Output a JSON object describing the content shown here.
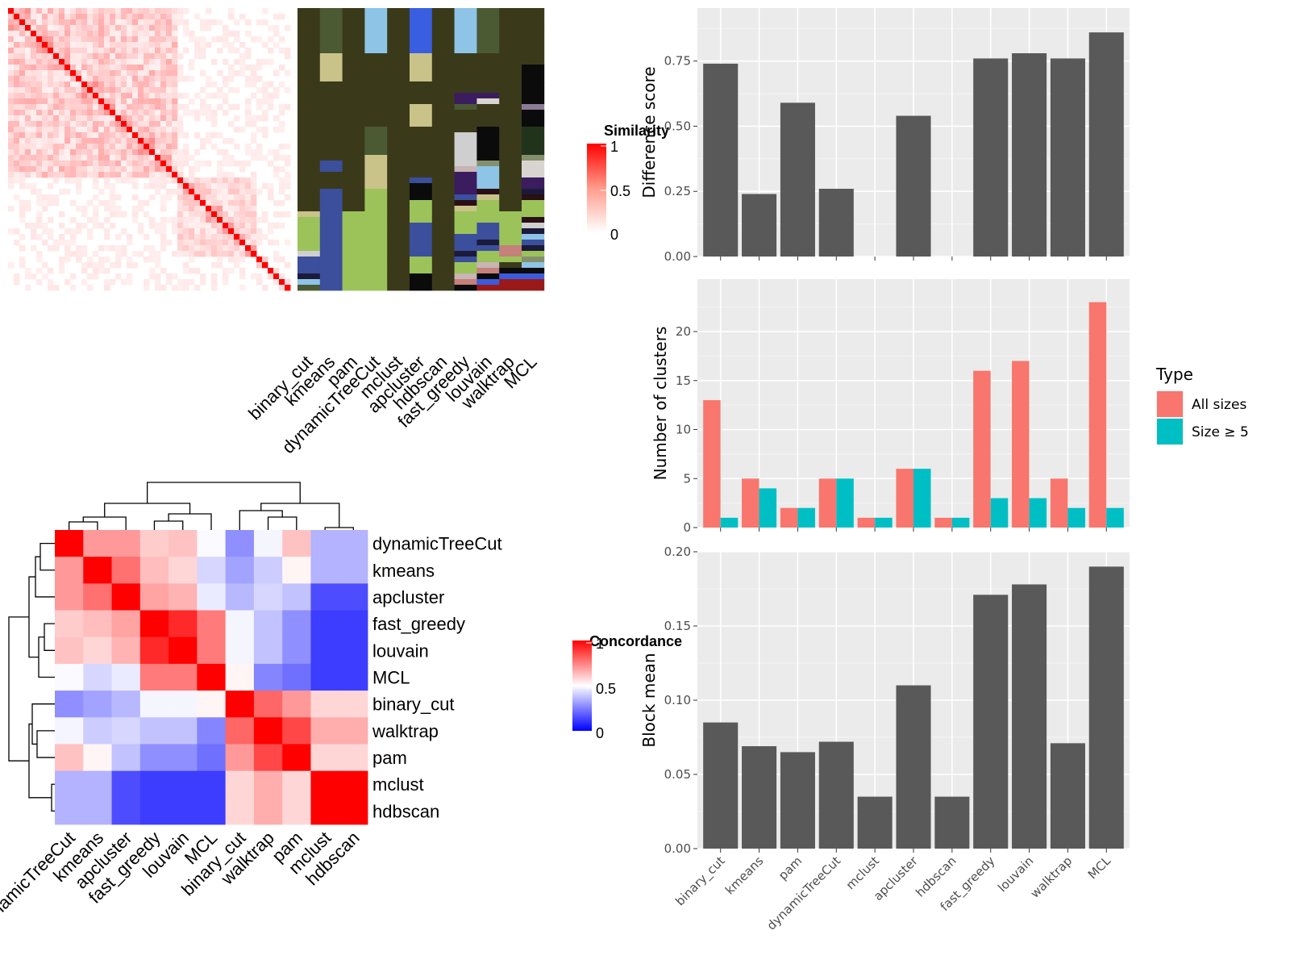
{
  "chart_data": [
    {
      "type": "heatmap",
      "panel": "similarity-matrix-with-cluster-annotations",
      "legend_title": "Similarity",
      "legend_ticks": [
        "0",
        "0.5",
        "1"
      ],
      "methods": [
        "binary_cut",
        "kmeans",
        "pam",
        "dynamicTreeCut",
        "mclust",
        "apcluster",
        "hdbscan",
        "fast_greedy",
        "louvain",
        "walktrap",
        "MCL"
      ],
      "n_terms": 50,
      "color_low": "#ffffff",
      "color_high": "#ff0000"
    },
    {
      "type": "heatmap",
      "panel": "method-concordance",
      "legend_title": "Concordance",
      "legend_ticks": [
        "0",
        "0.5",
        "1"
      ],
      "row_labels": [
        "dynamicTreeCut",
        "kmeans",
        "apcluster",
        "fast_greedy",
        "louvain",
        "MCL",
        "binary_cut",
        "walktrap",
        "pam",
        "mclust",
        "hdbscan"
      ],
      "col_labels": [
        "dynamicTreeCut",
        "kmeans",
        "apcluster",
        "fast_greedy",
        "louvain",
        "MCL",
        "binary_cut",
        "walktrap",
        "pam",
        "mclust",
        "hdbscan"
      ],
      "values": [
        [
          1.0,
          0.7,
          0.7,
          0.6,
          0.62,
          0.49,
          0.28,
          0.48,
          0.62,
          0.35,
          0.35
        ],
        [
          0.7,
          1.0,
          0.78,
          0.63,
          0.58,
          0.42,
          0.32,
          0.4,
          0.52,
          0.35,
          0.35
        ],
        [
          0.7,
          0.78,
          1.0,
          0.68,
          0.65,
          0.46,
          0.36,
          0.42,
          0.38,
          0.15,
          0.15
        ],
        [
          0.6,
          0.63,
          0.68,
          1.0,
          0.92,
          0.76,
          0.48,
          0.38,
          0.28,
          0.12,
          0.12
        ],
        [
          0.62,
          0.58,
          0.65,
          0.92,
          1.0,
          0.76,
          0.48,
          0.38,
          0.28,
          0.12,
          0.12
        ],
        [
          0.49,
          0.42,
          0.46,
          0.76,
          0.76,
          1.0,
          0.52,
          0.26,
          0.22,
          0.12,
          0.12
        ],
        [
          0.28,
          0.32,
          0.36,
          0.48,
          0.48,
          0.52,
          1.0,
          0.8,
          0.7,
          0.58,
          0.58
        ],
        [
          0.48,
          0.4,
          0.42,
          0.38,
          0.38,
          0.26,
          0.8,
          1.0,
          0.86,
          0.66,
          0.66
        ],
        [
          0.62,
          0.52,
          0.38,
          0.28,
          0.28,
          0.22,
          0.7,
          0.86,
          1.0,
          0.58,
          0.58
        ],
        [
          0.35,
          0.35,
          0.15,
          0.12,
          0.12,
          0.12,
          0.58,
          0.66,
          0.58,
          1.0,
          1.0
        ],
        [
          0.35,
          0.35,
          0.15,
          0.12,
          0.12,
          0.12,
          0.58,
          0.66,
          0.58,
          1.0,
          1.0
        ]
      ]
    },
    {
      "type": "bar",
      "panel": "difference-score",
      "categories": [
        "binary_cut",
        "kmeans",
        "pam",
        "dynamicTreeCut",
        "mclust",
        "apcluster",
        "hdbscan",
        "fast_greedy",
        "louvain",
        "walktrap",
        "MCL"
      ],
      "values": [
        0.74,
        0.24,
        0.59,
        0.26,
        0,
        0.54,
        0,
        0.76,
        0.78,
        0.76,
        0.86
      ],
      "ylabel": "Difference score",
      "ylim": [
        0,
        0.91
      ],
      "yticks": [
        "0.00",
        "0.25",
        "0.50",
        "0.75"
      ],
      "ytick_values": [
        0,
        0.25,
        0.5,
        0.75
      ],
      "bar_color": "#595959",
      "panel_bg": "#ebebeb",
      "grid": true
    },
    {
      "type": "bar",
      "panel": "number-of-clusters",
      "categories": [
        "binary_cut",
        "kmeans",
        "pam",
        "dynamicTreeCut",
        "mclust",
        "apcluster",
        "hdbscan",
        "fast_greedy",
        "louvain",
        "walktrap",
        "MCL"
      ],
      "series": [
        {
          "name": "All sizes",
          "values": [
            13,
            5,
            2,
            5,
            1,
            6,
            1,
            16,
            17,
            5,
            23
          ],
          "color": "#f8766d"
        },
        {
          "name": "Size ≥ 5",
          "values": [
            1,
            4,
            2,
            5,
            1,
            6,
            1,
            3,
            3,
            2,
            2
          ],
          "color": "#00bfc4"
        }
      ],
      "ylabel": "Number of clusters",
      "ylim": [
        0,
        24.2
      ],
      "yticks": [
        "0",
        "5",
        "10",
        "15",
        "20"
      ],
      "ytick_values": [
        0,
        5,
        10,
        15,
        20
      ],
      "legend_title": "Type",
      "legend_position": "right",
      "panel_bg": "#ebebeb",
      "grid": true
    },
    {
      "type": "bar",
      "panel": "block-mean",
      "categories": [
        "binary_cut",
        "kmeans",
        "pam",
        "dynamicTreeCut",
        "mclust",
        "apcluster",
        "hdbscan",
        "fast_greedy",
        "louvain",
        "walktrap",
        "MCL"
      ],
      "values": [
        0.085,
        0.069,
        0.065,
        0.072,
        0.035,
        0.11,
        0.035,
        0.171,
        0.178,
        0.071,
        0.19
      ],
      "ylabel": "Block mean",
      "ylim": [
        0,
        0.2
      ],
      "yticks": [
        "0.00",
        "0.05",
        "0.10",
        "0.15",
        "0.20"
      ],
      "ytick_values": [
        0,
        0.05,
        0.1,
        0.15,
        0.2
      ],
      "bar_color": "#595959",
      "panel_bg": "#ebebeb",
      "grid": true
    }
  ]
}
